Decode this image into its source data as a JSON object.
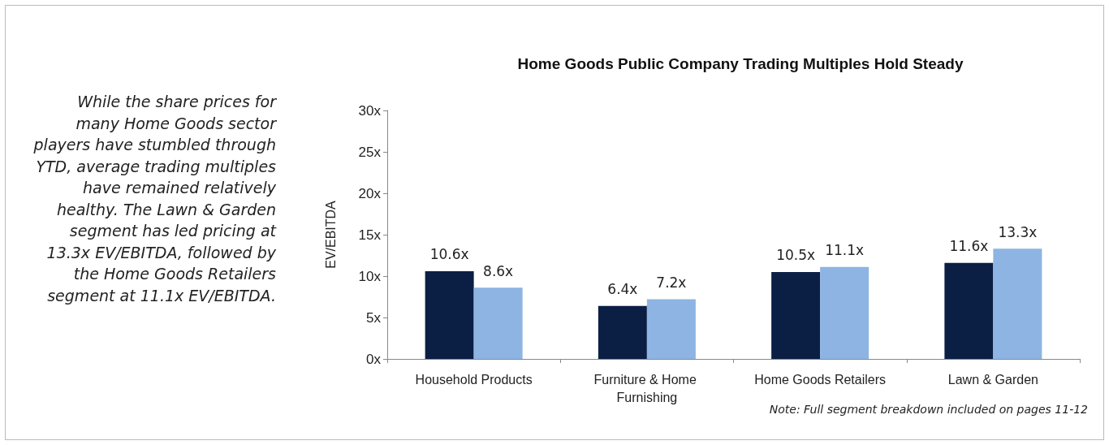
{
  "chart_data": {
    "type": "bar",
    "title": "Home Goods Public Company Trading Multiples Hold Steady",
    "ylabel": "EV/EBITDA",
    "categories": [
      "Household Products",
      "Furniture & Home Furnishing",
      "Home Goods Retailers",
      "Lawn & Garden"
    ],
    "series": [
      {
        "color": "#0b1f45",
        "values": [
          10.6,
          6.4,
          10.5,
          11.6
        ],
        "value_labels": [
          "10.6x",
          "6.4x",
          "10.5x",
          "11.6x"
        ]
      },
      {
        "color": "#8db4e2",
        "values": [
          8.6,
          7.2,
          11.1,
          13.3
        ],
        "value_labels": [
          "8.6x",
          "7.2x",
          "11.1x",
          "13.3x"
        ]
      }
    ],
    "ylim": [
      0,
      30
    ],
    "yticks": [
      {
        "value": 0,
        "label": "0x"
      },
      {
        "value": 5,
        "label": "5x"
      },
      {
        "value": 10,
        "label": "10x"
      },
      {
        "value": 15,
        "label": "15x"
      },
      {
        "value": 20,
        "label": "20x"
      },
      {
        "value": 25,
        "label": "25x"
      },
      {
        "value": 30,
        "label": "30x"
      }
    ],
    "grid": false,
    "annotations": [
      "While the share prices for many Home Goods sector players have stumbled through YTD, average trading multiples have remained relatively healthy. The Lawn & Garden segment has led pricing at 13.3x EV/EBITDA, followed by the Home Goods Retailers segment at 11.1x EV/EBITDA.",
      "Note: Full segment breakdown included on pages 11-12"
    ]
  }
}
